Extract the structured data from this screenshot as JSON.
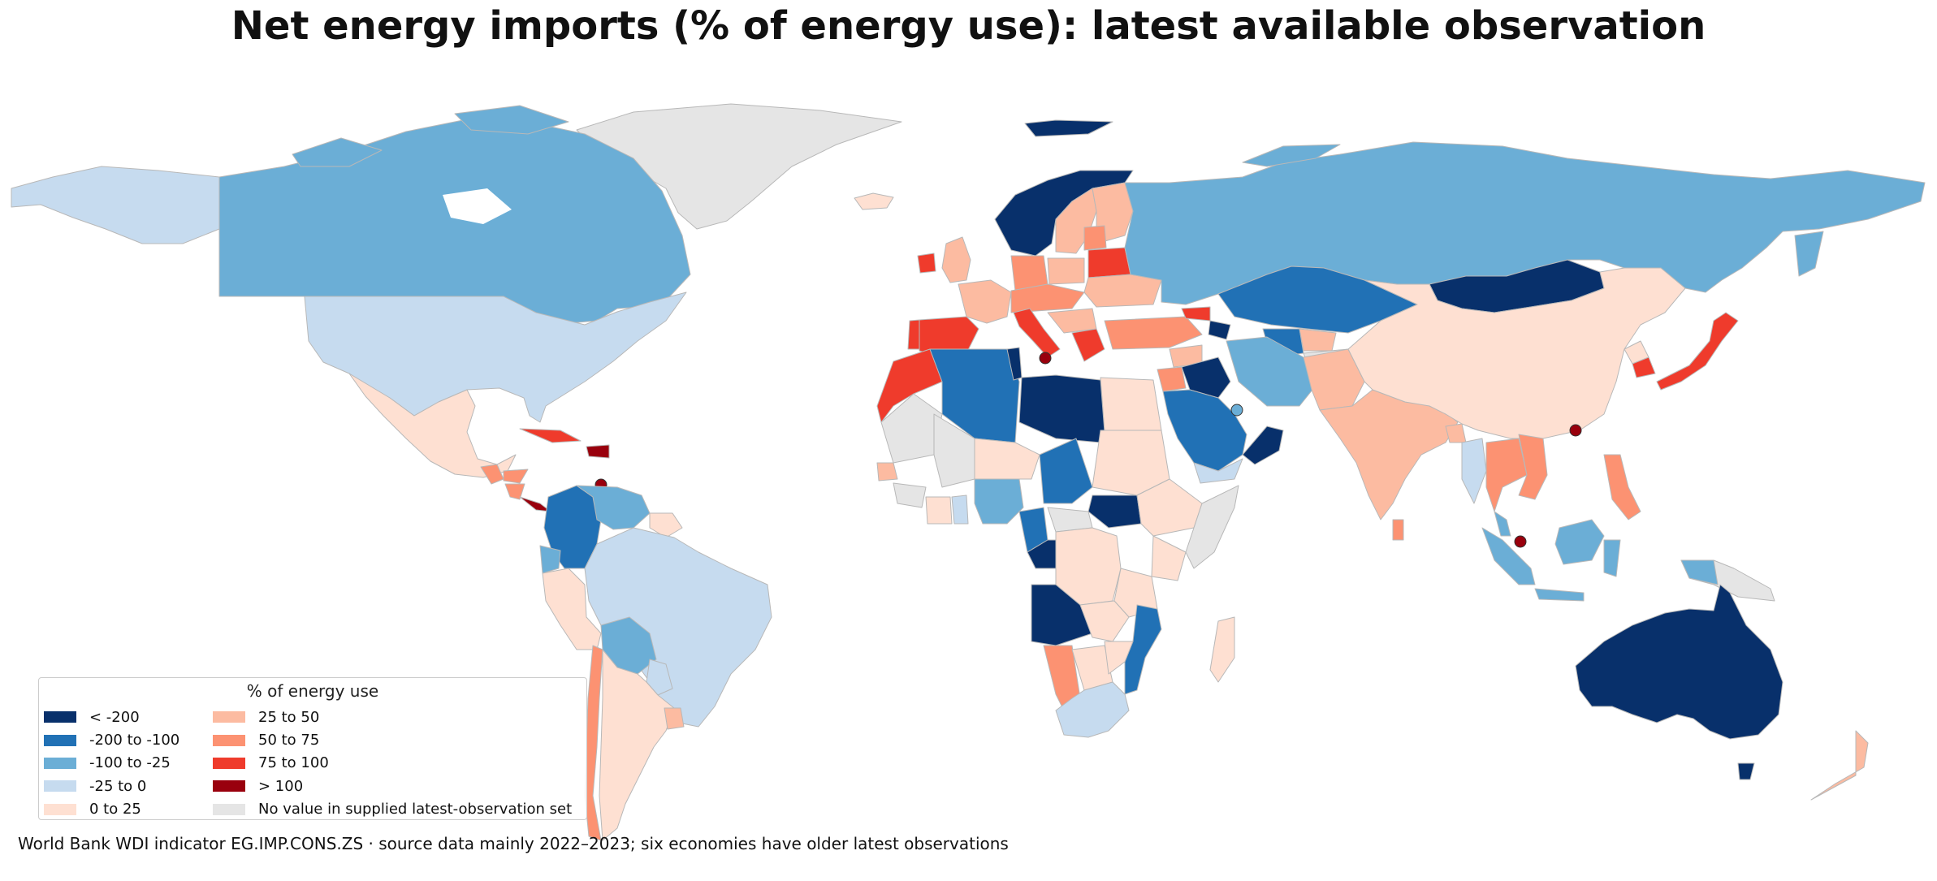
{
  "title": "Net energy imports (% of energy use): latest available observation",
  "caption": "World Bank WDI indicator EG.IMP.CONS.ZS · source data mainly 2022–2023; six economies have older latest observations",
  "legend": {
    "title": "% of energy use",
    "items": [
      {
        "label": "< -200",
        "color": "#08306b",
        "icon": "swatch"
      },
      {
        "label": "-200 to -100",
        "color": "#2171b5",
        "icon": "swatch"
      },
      {
        "label": "-100 to -25",
        "color": "#6baed6",
        "icon": "swatch"
      },
      {
        "label": "-25 to 0",
        "color": "#c6dbef",
        "icon": "swatch"
      },
      {
        "label": "0 to 25",
        "color": "#fee0d2",
        "icon": "swatch"
      },
      {
        "label": "25 to 50",
        "color": "#fcbba1",
        "icon": "swatch"
      },
      {
        "label": "50 to 75",
        "color": "#fc9272",
        "icon": "swatch"
      },
      {
        "label": "75 to 100",
        "color": "#ef3b2c",
        "icon": "swatch"
      },
      {
        "label": "> 100",
        "color": "#99000d",
        "icon": "swatch"
      },
      {
        "label": "No value in supplied latest-observation set",
        "color": "#e5e5e5",
        "icon": "swatch"
      }
    ]
  },
  "colors": {
    "border": "#b8b8b8",
    "nodata": "#e5e5e5"
  }
}
